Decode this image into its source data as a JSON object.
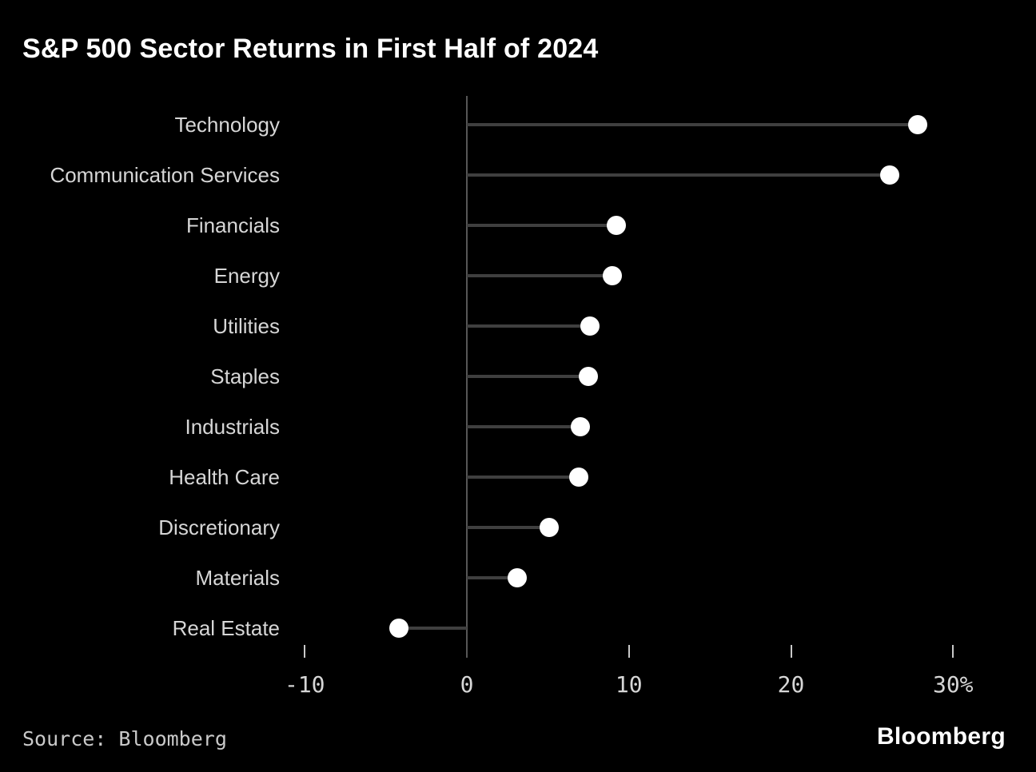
{
  "chart_data": {
    "type": "lollipop",
    "title": "S&P 500 Sector Returns in First Half of 2024",
    "categories": [
      "Technology",
      "Communication Services",
      "Financials",
      "Energy",
      "Utilities",
      "Staples",
      "Industrials",
      "Health Care",
      "Discretionary",
      "Materials",
      "Real Estate"
    ],
    "values": [
      27.8,
      26.1,
      9.2,
      9.0,
      7.6,
      7.5,
      7.0,
      6.9,
      5.1,
      3.1,
      -4.2
    ],
    "unit": "%",
    "xlabel": "",
    "ylabel": "",
    "xlim": [
      -13,
      33
    ],
    "x_ticks": [
      {
        "value": -10,
        "label": "-10"
      },
      {
        "value": 0,
        "label": "0"
      },
      {
        "value": 10,
        "label": "10"
      },
      {
        "value": 20,
        "label": "20"
      },
      {
        "value": 30,
        "label": "30%"
      }
    ],
    "grid": "off",
    "legend": "none",
    "colors": {
      "background": "#000000",
      "title": "#ffffff",
      "category_label": "#d6d6d6",
      "stem": "#3f3f3f",
      "zero_axis_line": "#575757",
      "tick_mark": "#c9c9c9",
      "tick_label": "#d6d6d6",
      "dot": "#ffffff",
      "source": "#c9c9c9"
    }
  },
  "footer": {
    "source": "Source: Bloomberg",
    "logo": "Bloomberg"
  }
}
